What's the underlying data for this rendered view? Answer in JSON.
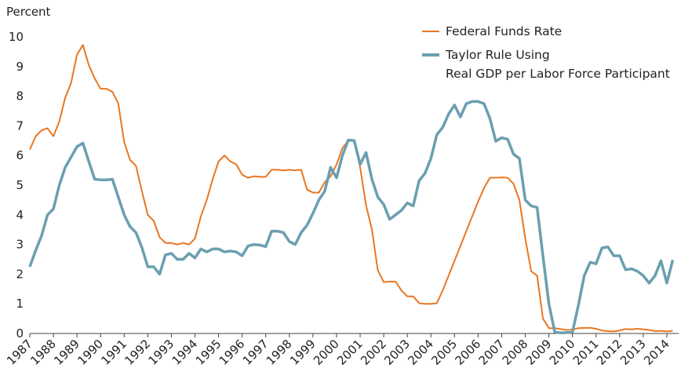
{
  "chart_data": {
    "type": "line",
    "y_label": "Percent",
    "x": [
      1987,
      1987.25,
      1987.5,
      1987.75,
      1988,
      1988.25,
      1988.5,
      1988.75,
      1989,
      1989.25,
      1989.5,
      1989.75,
      1990,
      1990.25,
      1990.5,
      1990.75,
      1991,
      1991.25,
      1991.5,
      1991.75,
      1992,
      1992.25,
      1992.5,
      1992.75,
      1993,
      1993.25,
      1993.5,
      1993.75,
      1994,
      1994.25,
      1994.5,
      1994.75,
      1995,
      1995.25,
      1995.5,
      1995.75,
      1996,
      1996.25,
      1996.5,
      1996.75,
      1997,
      1997.25,
      1997.5,
      1997.75,
      1998,
      1998.25,
      1998.5,
      1998.75,
      1999,
      1999.25,
      1999.5,
      1999.75,
      2000,
      2000.25,
      2000.5,
      2000.75,
      2001,
      2001.25,
      2001.5,
      2001.75,
      2002,
      2002.25,
      2002.5,
      2002.75,
      2003,
      2003.25,
      2003.5,
      2003.75,
      2004,
      2004.25,
      2004.5,
      2004.75,
      2005,
      2005.25,
      2005.5,
      2005.75,
      2006,
      2006.25,
      2006.5,
      2006.75,
      2007,
      2007.25,
      2007.5,
      2007.75,
      2008,
      2008.25,
      2008.5,
      2008.75,
      2009,
      2009.25,
      2009.5,
      2009.75,
      2010,
      2010.25,
      2010.5,
      2010.75,
      2011,
      2011.25,
      2011.5,
      2011.75,
      2012,
      2012.25,
      2012.5,
      2012.75,
      2013,
      2013.25,
      2013.5,
      2013.75,
      2014,
      2014.25
    ],
    "series": [
      {
        "name": "Federal Funds Rate",
        "color": "#e87722",
        "width": 2,
        "values": [
          6.2,
          6.65,
          6.85,
          6.92,
          6.65,
          7.15,
          7.95,
          8.45,
          9.4,
          9.73,
          9.05,
          8.6,
          8.25,
          8.25,
          8.15,
          7.75,
          6.45,
          5.85,
          5.65,
          4.8,
          4.0,
          3.8,
          3.25,
          3.05,
          3.05,
          3.0,
          3.05,
          3.0,
          3.2,
          3.95,
          4.5,
          5.2,
          5.8,
          6.0,
          5.8,
          5.7,
          5.35,
          5.25,
          5.3,
          5.28,
          5.28,
          5.52,
          5.52,
          5.5,
          5.52,
          5.5,
          5.52,
          4.85,
          4.75,
          4.75,
          5.1,
          5.3,
          5.7,
          6.25,
          6.5,
          6.5,
          5.6,
          4.33,
          3.5,
          2.13,
          1.73,
          1.75,
          1.75,
          1.45,
          1.25,
          1.25,
          1.02,
          1.0,
          1.0,
          1.02,
          1.45,
          1.95,
          2.45,
          2.95,
          3.45,
          3.95,
          4.45,
          4.9,
          5.25,
          5.25,
          5.26,
          5.25,
          5.05,
          4.5,
          3.2,
          2.1,
          1.95,
          0.5,
          0.18,
          0.18,
          0.15,
          0.12,
          0.13,
          0.18,
          0.19,
          0.19,
          0.16,
          0.1,
          0.08,
          0.07,
          0.1,
          0.15,
          0.14,
          0.16,
          0.14,
          0.12,
          0.08,
          0.09,
          0.07,
          0.09
        ]
      },
      {
        "name": "Taylor Rule Using\nReal GDP per Labor Force Participant",
        "color": "#6a9fb0",
        "width": 3.5,
        "values": [
          2.25,
          2.8,
          3.3,
          4.0,
          4.2,
          5.0,
          5.6,
          5.95,
          6.3,
          6.42,
          5.8,
          5.2,
          5.18,
          5.18,
          5.2,
          4.6,
          4.0,
          3.6,
          3.4,
          2.9,
          2.25,
          2.25,
          2.0,
          2.65,
          2.7,
          2.5,
          2.5,
          2.7,
          2.55,
          2.85,
          2.75,
          2.85,
          2.85,
          2.75,
          2.78,
          2.75,
          2.62,
          2.95,
          3.0,
          2.98,
          2.93,
          3.45,
          3.45,
          3.4,
          3.1,
          3.0,
          3.4,
          3.65,
          4.05,
          4.5,
          4.8,
          5.6,
          5.25,
          6.0,
          6.52,
          6.5,
          5.7,
          6.1,
          5.2,
          4.6,
          4.35,
          3.85,
          4.0,
          4.15,
          4.4,
          4.3,
          5.15,
          5.4,
          5.9,
          6.7,
          6.95,
          7.4,
          7.7,
          7.3,
          7.75,
          7.82,
          7.82,
          7.75,
          7.25,
          6.48,
          6.6,
          6.55,
          6.05,
          5.9,
          4.5,
          4.3,
          4.25,
          2.6,
          1.0,
          0.05,
          0.02,
          0.03,
          0.05,
          0.95,
          1.95,
          2.4,
          2.35,
          2.88,
          2.92,
          2.62,
          2.62,
          2.15,
          2.18,
          2.1,
          1.95,
          1.7,
          1.95,
          2.45,
          1.7,
          2.48
        ]
      }
    ],
    "xlim": [
      1987,
      2014.5
    ],
    "xticks": [
      1987,
      1988,
      1989,
      1990,
      1991,
      1992,
      1993,
      1994,
      1995,
      1996,
      1997,
      1998,
      1999,
      2000,
      2001,
      2002,
      2003,
      2004,
      2005,
      2006,
      2007,
      2008,
      2009,
      2010,
      2011,
      2012,
      2013,
      2014
    ],
    "ylim": [
      0,
      10
    ],
    "yticks": [
      0,
      1,
      2,
      3,
      4,
      5,
      6,
      7,
      8,
      9,
      10
    ],
    "grid": false,
    "legend": "upper right"
  }
}
